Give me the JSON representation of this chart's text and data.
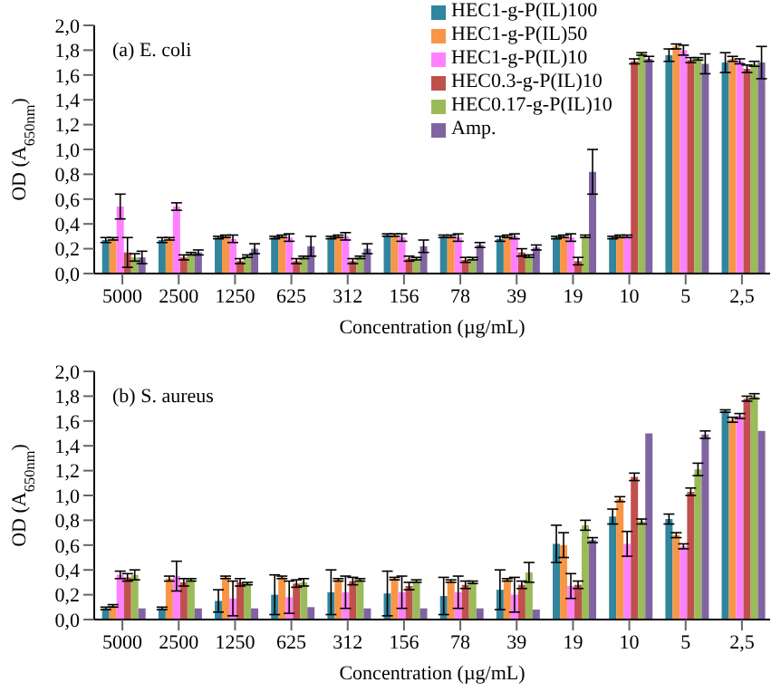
{
  "chart_data": [
    {
      "type": "bar",
      "title": "(a) E. coli",
      "xlabel": "Concentration (µg/mL)",
      "ylabel": "OD (A$_{650nm}$)",
      "categories": [
        "5000",
        "2500",
        "1250",
        "625",
        "312",
        "156",
        "78",
        "39",
        "19",
        "10",
        "5",
        "2,5"
      ],
      "series": [
        {
          "name": "HEC1-g-P(IL)100",
          "color": "#31859c",
          "values": [
            0.27,
            0.27,
            0.29,
            0.29,
            0.29,
            0.31,
            0.3,
            0.28,
            0.29,
            0.29,
            1.76,
            1.7
          ],
          "errors": [
            0.02,
            0.02,
            0.01,
            0.01,
            0.01,
            0.01,
            0.01,
            0.02,
            0.01,
            0.01,
            0.05,
            0.08
          ]
        },
        {
          "name": "HEC1-g-P(IL)50",
          "color": "#f79646",
          "values": [
            0.28,
            0.28,
            0.3,
            0.3,
            0.3,
            0.31,
            0.3,
            0.3,
            0.3,
            0.3,
            1.83,
            1.73
          ],
          "errors": [
            0.01,
            0.01,
            0.01,
            0.01,
            0.01,
            0.01,
            0.01,
            0.01,
            0.01,
            0.01,
            0.02,
            0.02
          ]
        },
        {
          "name": "HEC1-g-P(IL)10",
          "color": "#ff80ff",
          "values": [
            0.54,
            0.54,
            0.28,
            0.29,
            0.3,
            0.29,
            0.29,
            0.3,
            0.29,
            0.3,
            1.8,
            1.71
          ],
          "errors": [
            0.1,
            0.03,
            0.03,
            0.03,
            0.03,
            0.03,
            0.03,
            0.02,
            0.03,
            0.01,
            0.04,
            0.02
          ]
        },
        {
          "name": "HEC0.3-g-P(IL)10",
          "color": "#c0504d",
          "values": [
            0.17,
            0.13,
            0.1,
            0.1,
            0.1,
            0.12,
            0.11,
            0.17,
            0.1,
            1.71,
            1.72,
            1.65
          ],
          "errors": [
            0.12,
            0.02,
            0.02,
            0.02,
            0.02,
            0.02,
            0.02,
            0.03,
            0.03,
            0.02,
            0.02,
            0.03
          ]
        },
        {
          "name": "HEC0.17-g-P(IL)10",
          "color": "#9bbb59",
          "values": [
            0.13,
            0.16,
            0.14,
            0.13,
            0.13,
            0.12,
            0.12,
            0.14,
            0.3,
            1.77,
            1.73,
            1.69
          ],
          "errors": [
            0.03,
            0.01,
            0.01,
            0.01,
            0.01,
            0.01,
            0.01,
            0.01,
            0.01,
            0.01,
            0.01,
            0.02
          ]
        },
        {
          "name": "Amp.",
          "color": "#8064a2",
          "values": [
            0.13,
            0.17,
            0.2,
            0.22,
            0.2,
            0.22,
            0.23,
            0.21,
            0.82,
            1.73,
            1.69,
            1.7
          ],
          "errors": [
            0.05,
            0.02,
            0.04,
            0.08,
            0.04,
            0.05,
            0.02,
            0.02,
            0.18,
            0.02,
            0.08,
            0.13
          ]
        }
      ],
      "ylim": [
        0,
        2
      ],
      "yticks": [
        {
          "value": 0,
          "label": "0,0"
        },
        {
          "value": 0.2,
          "label": "0,2"
        },
        {
          "value": 0.4,
          "label": "0,4"
        },
        {
          "value": 0.6,
          "label": "0,6"
        },
        {
          "value": 0.8,
          "label": "0,8"
        },
        {
          "value": 1,
          "label": "1,0"
        },
        {
          "value": 1.2,
          "label": "1,2"
        },
        {
          "value": 1.4,
          "label": "1,4"
        },
        {
          "value": 1.6,
          "label": "1,6"
        },
        {
          "value": 1.8,
          "label": "1,8"
        },
        {
          "value": 2,
          "label": "2,0"
        }
      ],
      "grid": false,
      "legend": "top right"
    },
    {
      "type": "bar",
      "title": "(b) S. aureus",
      "xlabel": "Concentration (µg/mL)",
      "ylabel": "OD (A$_{650nm}$)",
      "categories": [
        "5000",
        "2500",
        "1250",
        "625",
        "312",
        "156",
        "78",
        "39",
        "19",
        "10",
        "5",
        "2,5"
      ],
      "series": [
        {
          "color": "#31859c",
          "values": [
            0.09,
            0.09,
            0.15,
            0.2,
            0.22,
            0.21,
            0.19,
            0.24,
            0.61,
            0.83,
            0.81,
            1.68
          ],
          "errors": [
            0.01,
            0.01,
            0.09,
            0.16,
            0.18,
            0.18,
            0.15,
            0.16,
            0.15,
            0.06,
            0.04,
            0.01
          ]
        },
        {
          "color": "#f79646",
          "values": [
            0.11,
            0.33,
            0.34,
            0.34,
            0.32,
            0.33,
            0.31,
            0.32,
            0.6,
            0.97,
            0.68,
            1.61
          ],
          "errors": [
            0.01,
            0.02,
            0.01,
            0.01,
            0.01,
            0.01,
            0.01,
            0.01,
            0.1,
            0.02,
            0.02,
            0.02
          ]
        },
        {
          "color": "#ff80ff",
          "values": [
            0.36,
            0.35,
            0.17,
            0.18,
            0.22,
            0.22,
            0.22,
            0.2,
            0.27,
            0.61,
            0.59,
            1.64
          ],
          "errors": [
            0.03,
            0.12,
            0.14,
            0.13,
            0.13,
            0.13,
            0.13,
            0.14,
            0.1,
            0.1,
            0.02,
            0.02
          ]
        },
        {
          "color": "#c0504d",
          "values": [
            0.34,
            0.3,
            0.3,
            0.29,
            0.31,
            0.27,
            0.28,
            0.28,
            0.28,
            1.15,
            1.03,
            1.78
          ],
          "errors": [
            0.03,
            0.03,
            0.03,
            0.03,
            0.03,
            0.03,
            0.03,
            0.03,
            0.03,
            0.03,
            0.03,
            0.02
          ]
        },
        {
          "color": "#9bbb59",
          "values": [
            0.36,
            0.32,
            0.29,
            0.3,
            0.32,
            0.31,
            0.3,
            0.38,
            0.76,
            0.79,
            1.21,
            1.8
          ],
          "errors": [
            0.04,
            0.01,
            0.01,
            0.03,
            0.01,
            0.01,
            0.01,
            0.08,
            0.04,
            0.02,
            0.05,
            0.02
          ]
        },
        {
          "color": "#8064a2",
          "values": [
            0.09,
            0.09,
            0.09,
            0.1,
            0.09,
            0.09,
            0.09,
            0.08,
            0.64,
            1.5,
            1.49,
            1.52
          ],
          "errors": [
            null,
            null,
            null,
            null,
            null,
            null,
            null,
            null,
            0.02,
            null,
            0.03,
            null
          ]
        }
      ],
      "ylim": [
        0,
        2
      ],
      "yticks": [
        {
          "value": 0,
          "label": "0,0"
        },
        {
          "value": 0.2,
          "label": "0,2"
        },
        {
          "value": 0.4,
          "label": "0,4"
        },
        {
          "value": 0.6,
          "label": "0,6"
        },
        {
          "value": 0.8,
          "label": "0,8"
        },
        {
          "value": 1,
          "label": "1,0"
        },
        {
          "value": 1.2,
          "label": "1,2"
        },
        {
          "value": 1.4,
          "label": "1,4"
        },
        {
          "value": 1.6,
          "label": "1,6"
        },
        {
          "value": 1.8,
          "label": "1,8"
        },
        {
          "value": 2,
          "label": "2,0"
        }
      ],
      "grid": false,
      "legend": false
    }
  ]
}
